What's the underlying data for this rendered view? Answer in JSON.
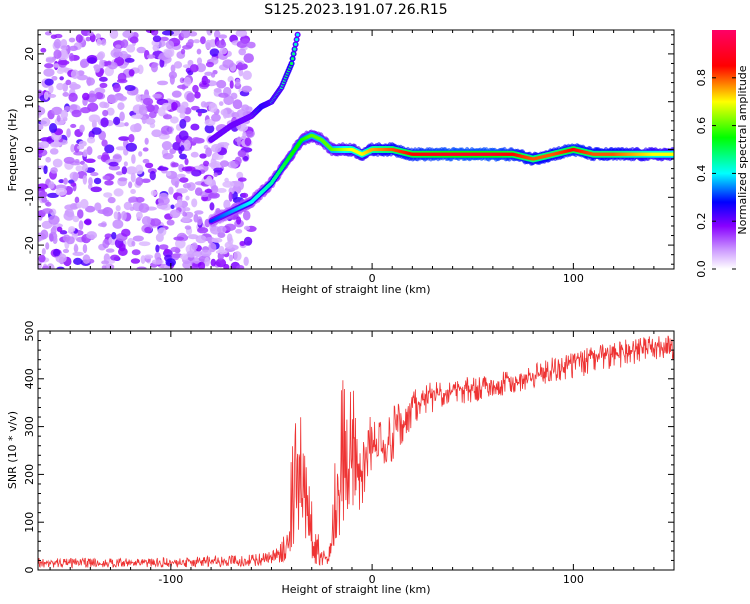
{
  "title": "S125.2023.191.07.26.R15",
  "chart_data": [
    {
      "type": "heatmap",
      "xlabel": "Height of straight line (km)",
      "ylabel": "Frequency (Hz)",
      "xlim": [
        -166,
        150
      ],
      "ylim": [
        -25,
        25
      ],
      "xticks": [
        -100,
        0,
        100
      ],
      "yticks": [
        -20,
        -10,
        0,
        10,
        20
      ],
      "colorbar": {
        "label": "Normalized spectral amplitude",
        "range": [
          0.0,
          1.0
        ],
        "ticks": [
          0.0,
          0.2,
          0.4,
          0.6,
          0.8
        ],
        "colormap": [
          "#ffffff",
          "#cc99ff",
          "#8800ff",
          "#0000ff",
          "#00ffff",
          "#00ff00",
          "#ffff00",
          "#ff0000",
          "#ff0066"
        ]
      },
      "ridge": {
        "x": [
          -80,
          -70,
          -60,
          -50,
          -45,
          -40,
          -35,
          -30,
          -25,
          -20,
          -15,
          -10,
          -5,
          0,
          10,
          20,
          40,
          60,
          70,
          80,
          90,
          100,
          110,
          120,
          130,
          140,
          150
        ],
        "y": [
          -15,
          -13,
          -11,
          -7,
          -4,
          -1,
          2,
          3,
          2,
          0,
          0,
          0,
          -1,
          0,
          0,
          -1,
          -1,
          -1,
          -1,
          -2,
          -1,
          0,
          -1,
          -1,
          -1,
          -1,
          -1
        ],
        "amplitude": [
          0.3,
          0.35,
          0.4,
          0.45,
          0.5,
          0.55,
          0.55,
          0.6,
          0.6,
          0.6,
          0.65,
          0.7,
          0.7,
          0.75,
          0.8,
          0.85,
          0.9,
          0.9,
          0.85,
          0.8,
          0.8,
          0.85,
          0.8,
          0.8,
          0.75,
          0.7,
          0.7
        ]
      },
      "upper_branch": {
        "x": [
          -80,
          -70,
          -60,
          -55,
          -50,
          -45,
          -40,
          -37
        ],
        "y": [
          2,
          5,
          7,
          9,
          10,
          13,
          18,
          24
        ],
        "amplitude": [
          0.4,
          0.4,
          0.4,
          0.5,
          0.45,
          0.45,
          0.5,
          0.4
        ]
      },
      "noise": {
        "x_range": [
          -166,
          -60
        ],
        "level": 0.25
      }
    },
    {
      "type": "line",
      "xlabel": "Height of straight line (km)",
      "ylabel": "SNR (10 * v/v)",
      "xlim": [
        -166,
        150
      ],
      "ylim": [
        0,
        500
      ],
      "xticks": [
        -100,
        0,
        100
      ],
      "yticks": [
        0,
        100,
        200,
        300,
        400,
        500
      ],
      "color": "#ee3333",
      "x": [
        -166,
        -150,
        -130,
        -110,
        -90,
        -70,
        -55,
        -50,
        -45,
        -42,
        -40,
        -38,
        -36,
        -34,
        -32,
        -30,
        -28,
        -26,
        -24,
        -22,
        -20,
        -18,
        -16,
        -14,
        -12,
        -10,
        -8,
        -6,
        -4,
        -2,
        0,
        2,
        4,
        6,
        8,
        10,
        12,
        14,
        16,
        18,
        20,
        25,
        30,
        40,
        50,
        60,
        70,
        80,
        90,
        100,
        110,
        120,
        130,
        140,
        150
      ],
      "y": [
        15,
        15,
        14,
        15,
        17,
        18,
        20,
        25,
        35,
        60,
        120,
        180,
        200,
        150,
        120,
        80,
        60,
        40,
        30,
        20,
        60,
        120,
        200,
        240,
        180,
        260,
        250,
        200,
        230,
        270,
        250,
        260,
        250,
        270,
        280,
        280,
        300,
        310,
        320,
        330,
        350,
        360,
        365,
        375,
        380,
        385,
        395,
        405,
        420,
        430,
        445,
        455,
        460,
        465,
        465
      ],
      "y_upper": [
        25,
        25,
        24,
        25,
        28,
        30,
        35,
        40,
        60,
        100,
        250,
        320,
        350,
        260,
        200,
        160,
        100,
        70,
        50,
        40,
        120,
        280,
        400,
        440,
        320,
        450,
        300,
        300,
        330,
        350,
        300,
        320,
        310,
        330,
        330,
        340,
        350,
        360,
        360,
        370,
        380,
        390,
        395,
        400,
        405,
        410,
        420,
        430,
        445,
        455,
        470,
        480,
        485,
        490,
        490
      ],
      "y_lower": [
        5,
        5,
        5,
        5,
        6,
        7,
        8,
        10,
        15,
        20,
        40,
        60,
        80,
        60,
        40,
        20,
        10,
        8,
        5,
        3,
        20,
        40,
        60,
        100,
        80,
        100,
        150,
        120,
        150,
        200,
        200,
        200,
        200,
        210,
        220,
        220,
        240,
        250,
        270,
        280,
        300,
        320,
        330,
        345,
        350,
        360,
        370,
        380,
        395,
        400,
        410,
        420,
        430,
        440,
        440
      ]
    }
  ]
}
